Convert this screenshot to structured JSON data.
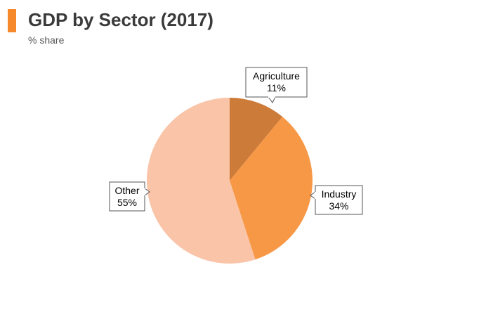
{
  "header": {
    "title": "GDP by Sector (2017)",
    "subtitle": "% share"
  },
  "colors": {
    "accent": "#f6892c",
    "callout_border": "#555555",
    "callout_bg": "#ffffff"
  },
  "chart_data": {
    "type": "pie",
    "title": "GDP by Sector (2017)",
    "subtitle": "% share",
    "start_angle_deg": 0,
    "direction": "clockwise",
    "slices": [
      {
        "label": "Agriculture",
        "value": 11,
        "value_label": "11%",
        "color": "#cd7b39",
        "callout_side": "top"
      },
      {
        "label": "Industry",
        "value": 34,
        "value_label": "34%",
        "color": "#f79847",
        "callout_side": "right"
      },
      {
        "label": "Other",
        "value": 55,
        "value_label": "55%",
        "color": "#f9c4a8",
        "callout_side": "left"
      }
    ]
  }
}
